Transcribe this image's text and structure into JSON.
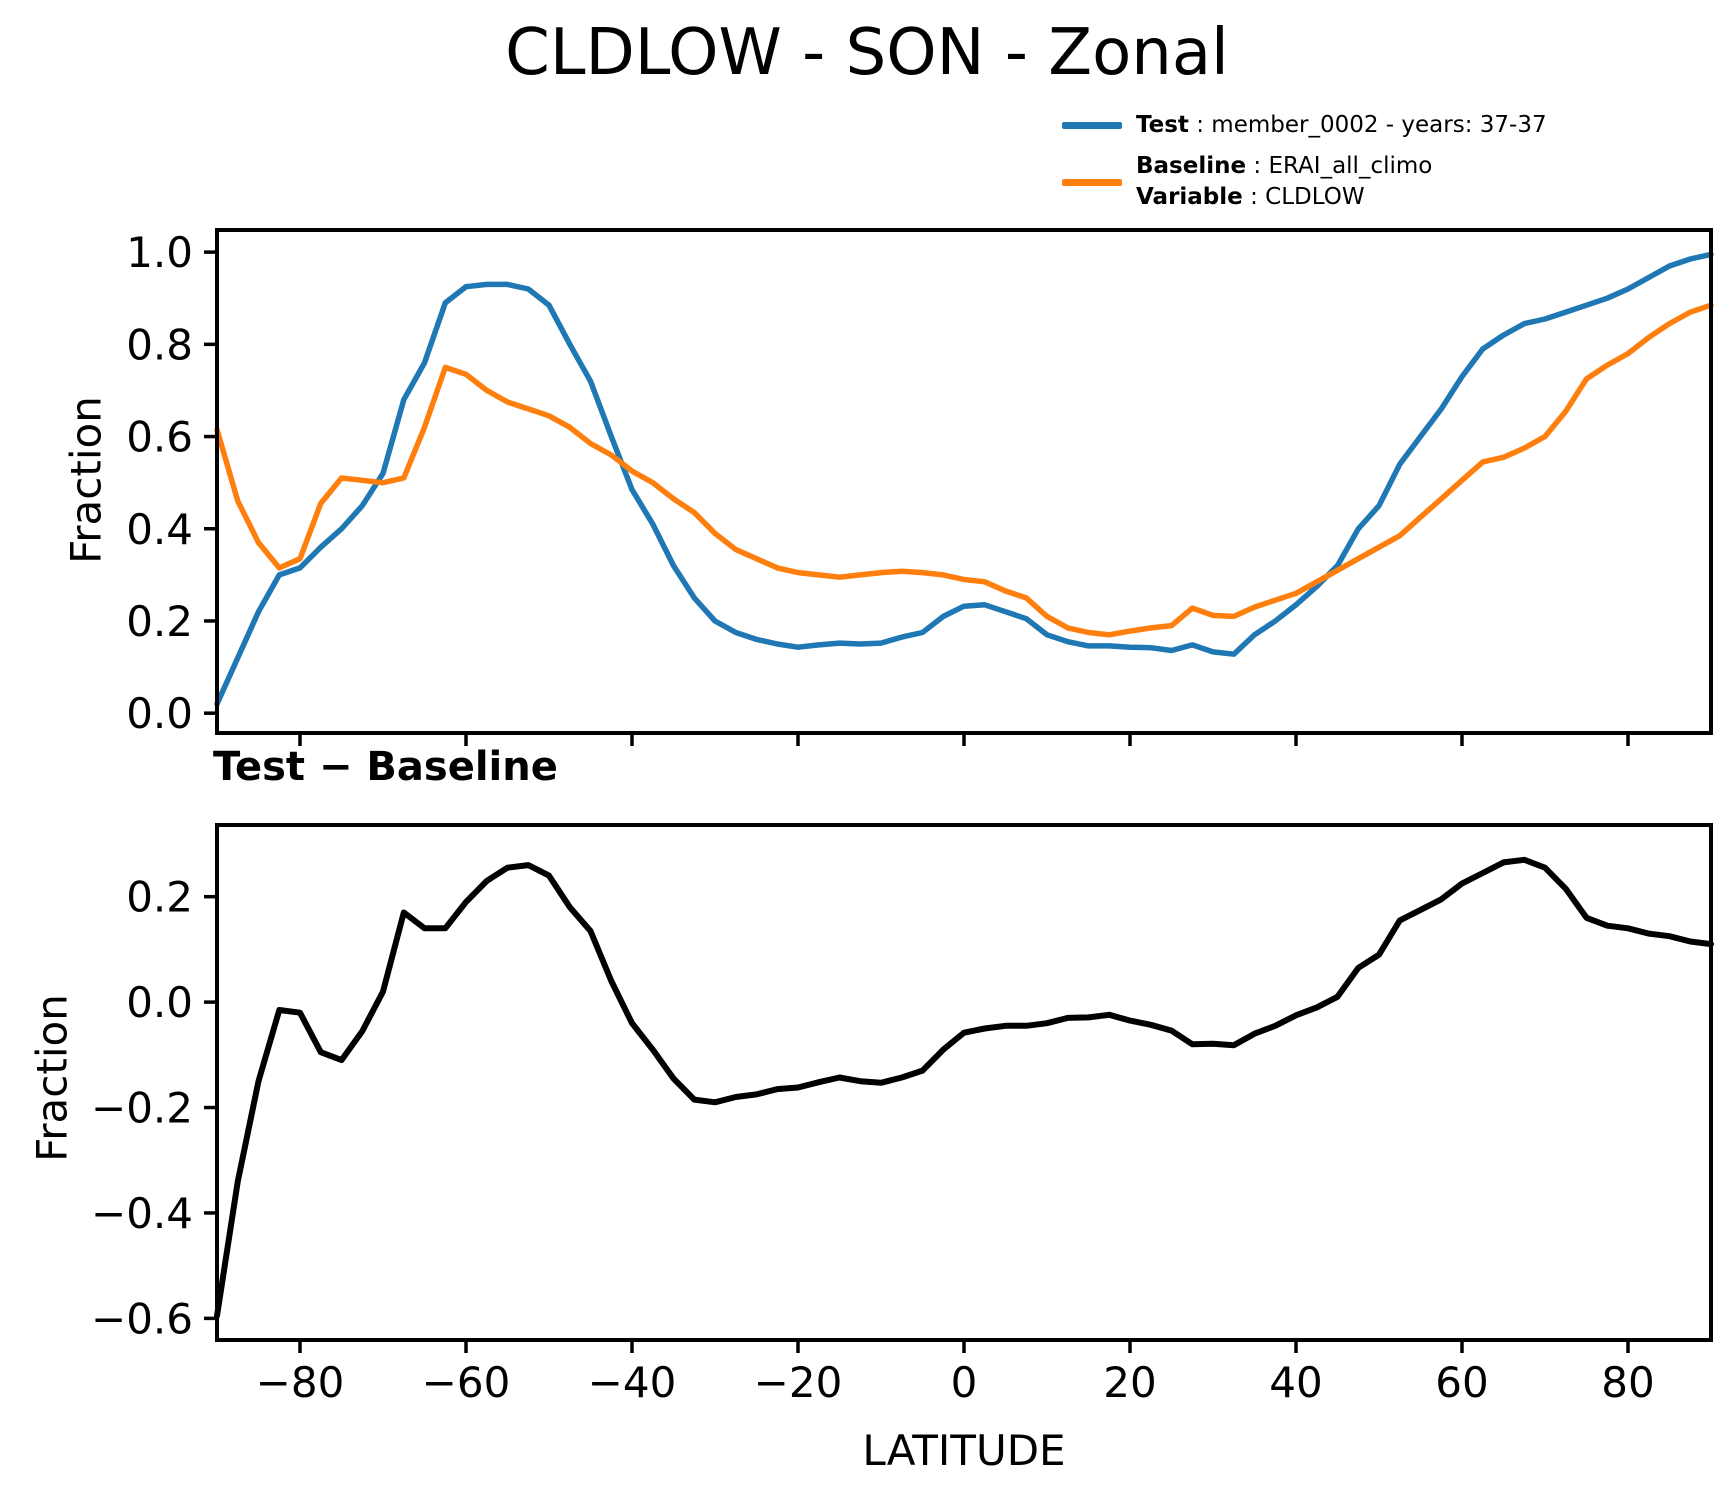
{
  "title": "CLDLOW - SON - Zonal",
  "subtitle": "Test − Baseline",
  "axes": {
    "xlabel": "LATITUDE",
    "ylabel": "Fraction"
  },
  "legend": {
    "test_label": "Test",
    "test_value": ": member_0002 - years: 37-37",
    "baseline_label": "Baseline",
    "baseline_value": ": ERAI_all_climo",
    "variable_label": "Variable",
    "variable_value": ": CLDLOW",
    "test_color": "#1f77b4",
    "baseline_color": "#ff7f0e"
  },
  "chart_data": [
    {
      "type": "line",
      "title": "CLDLOW - SON - Zonal",
      "xlabel": "",
      "ylabel": "Fraction",
      "legend_position": "upper right, outside axes",
      "grid": false,
      "xlim": [
        -90,
        90
      ],
      "ylim": [
        -0.043,
        1.048
      ],
      "xticks": [
        -80,
        -60,
        -40,
        -20,
        0,
        20,
        40,
        60,
        80
      ],
      "xtick_labels": [
        "−80",
        "−60",
        "−40",
        "−20",
        "0",
        "20",
        "40",
        "60",
        "80"
      ],
      "yticks": [
        0.0,
        0.2,
        0.4,
        0.6,
        0.8,
        1.0
      ],
      "ytick_labels": [
        "0.0",
        "0.2",
        "0.4",
        "0.6",
        "0.8",
        "1.0"
      ],
      "x": [
        -90,
        -87.5,
        -85,
        -82.5,
        -80,
        -77.5,
        -75,
        -72.5,
        -70,
        -67.5,
        -65,
        -62.5,
        -60,
        -57.5,
        -55,
        -52.5,
        -50,
        -47.5,
        -45,
        -42.5,
        -40,
        -37.5,
        -35,
        -32.5,
        -30,
        -27.5,
        -25,
        -22.5,
        -20,
        -17.5,
        -15,
        -12.5,
        -10,
        -7.5,
        -5,
        -2.5,
        0,
        2.5,
        5,
        7.5,
        10,
        12.5,
        15,
        17.5,
        20,
        22.5,
        25,
        27.5,
        30,
        32.5,
        35,
        37.5,
        40,
        42.5,
        45,
        47.5,
        50,
        52.5,
        55,
        57.5,
        60,
        62.5,
        65,
        67.5,
        70,
        72.5,
        75,
        77.5,
        80,
        82.5,
        85,
        87.5,
        90
      ],
      "series": [
        {
          "id": "test-line",
          "name": "Test : member_0002 - years: 37-37",
          "color": "#1f77b4",
          "values": [
            0.02,
            0.12,
            0.22,
            0.3,
            0.315,
            0.36,
            0.4,
            0.45,
            0.52,
            0.68,
            0.76,
            0.89,
            0.925,
            0.93,
            0.93,
            0.92,
            0.885,
            0.8,
            0.72,
            0.6,
            0.485,
            0.41,
            0.32,
            0.25,
            0.2,
            0.175,
            0.16,
            0.15,
            0.143,
            0.148,
            0.152,
            0.15,
            0.152,
            0.165,
            0.175,
            0.21,
            0.232,
            0.235,
            0.22,
            0.205,
            0.17,
            0.155,
            0.146,
            0.146,
            0.143,
            0.142,
            0.136,
            0.148,
            0.133,
            0.128,
            0.17,
            0.2,
            0.235,
            0.275,
            0.32,
            0.4,
            0.45,
            0.54,
            0.6,
            0.66,
            0.73,
            0.79,
            0.82,
            0.845,
            0.855,
            0.87,
            0.885,
            0.9,
            0.92,
            0.945,
            0.97,
            0.985,
            0.995
          ]
        },
        {
          "id": "baseline-line",
          "name": "Baseline : ERAI_all_climo / Variable : CLDLOW",
          "color": "#ff7f0e",
          "values": [
            0.615,
            0.46,
            0.37,
            0.315,
            0.335,
            0.455,
            0.51,
            0.505,
            0.5,
            0.51,
            0.62,
            0.75,
            0.735,
            0.7,
            0.675,
            0.66,
            0.645,
            0.62,
            0.585,
            0.56,
            0.525,
            0.5,
            0.465,
            0.435,
            0.39,
            0.355,
            0.335,
            0.315,
            0.305,
            0.3,
            0.295,
            0.3,
            0.305,
            0.308,
            0.305,
            0.3,
            0.29,
            0.285,
            0.265,
            0.25,
            0.21,
            0.185,
            0.175,
            0.17,
            0.178,
            0.185,
            0.19,
            0.228,
            0.212,
            0.21,
            0.23,
            0.245,
            0.26,
            0.285,
            0.31,
            0.335,
            0.36,
            0.385,
            0.425,
            0.465,
            0.505,
            0.545,
            0.555,
            0.575,
            0.6,
            0.655,
            0.725,
            0.755,
            0.78,
            0.815,
            0.845,
            0.87,
            0.885
          ]
        }
      ]
    },
    {
      "type": "line",
      "title": "Test − Baseline",
      "xlabel": "LATITUDE",
      "ylabel": "Fraction",
      "grid": false,
      "xlim": [
        -90,
        90
      ],
      "ylim": [
        -0.641,
        0.336
      ],
      "xticks": [
        -80,
        -60,
        -40,
        -20,
        0,
        20,
        40,
        60,
        80
      ],
      "xtick_labels": [
        "−80",
        "−60",
        "−40",
        "−20",
        "0",
        "20",
        "40",
        "60",
        "80"
      ],
      "yticks": [
        0.2,
        0.0,
        -0.2,
        -0.4,
        -0.6
      ],
      "ytick_labels": [
        "0.2",
        "0.0",
        "−0.2",
        "−0.4",
        "−0.6"
      ],
      "x": [
        -90,
        -87.5,
        -85,
        -82.5,
        -80,
        -77.5,
        -75,
        -72.5,
        -70,
        -67.5,
        -65,
        -62.5,
        -60,
        -57.5,
        -55,
        -52.5,
        -50,
        -47.5,
        -45,
        -42.5,
        -40,
        -37.5,
        -35,
        -32.5,
        -30,
        -27.5,
        -25,
        -22.5,
        -20,
        -17.5,
        -15,
        -12.5,
        -10,
        -7.5,
        -5,
        -2.5,
        0,
        2.5,
        5,
        7.5,
        10,
        12.5,
        15,
        17.5,
        20,
        22.5,
        25,
        27.5,
        30,
        32.5,
        35,
        37.5,
        40,
        42.5,
        45,
        47.5,
        50,
        52.5,
        55,
        57.5,
        60,
        62.5,
        65,
        67.5,
        70,
        72.5,
        75,
        77.5,
        80,
        82.5,
        85,
        87.5,
        90
      ],
      "series": [
        {
          "id": "difference-line",
          "name": "Test − Baseline",
          "color": "#000000",
          "values": [
            -0.595,
            -0.34,
            -0.15,
            -0.015,
            -0.02,
            -0.095,
            -0.11,
            -0.055,
            0.02,
            0.17,
            0.14,
            0.14,
            0.19,
            0.23,
            0.255,
            0.26,
            0.24,
            0.18,
            0.135,
            0.04,
            -0.04,
            -0.09,
            -0.145,
            -0.185,
            -0.19,
            -0.18,
            -0.175,
            -0.165,
            -0.162,
            -0.152,
            -0.143,
            -0.15,
            -0.153,
            -0.143,
            -0.13,
            -0.09,
            -0.058,
            -0.05,
            -0.045,
            -0.045,
            -0.04,
            -0.03,
            -0.029,
            -0.024,
            -0.035,
            -0.043,
            -0.054,
            -0.08,
            -0.079,
            -0.082,
            -0.06,
            -0.045,
            -0.025,
            -0.01,
            0.01,
            0.065,
            0.09,
            0.155,
            0.175,
            0.195,
            0.225,
            0.245,
            0.265,
            0.27,
            0.255,
            0.215,
            0.16,
            0.145,
            0.14,
            0.13,
            0.125,
            0.115,
            0.11
          ]
        }
      ]
    }
  ]
}
